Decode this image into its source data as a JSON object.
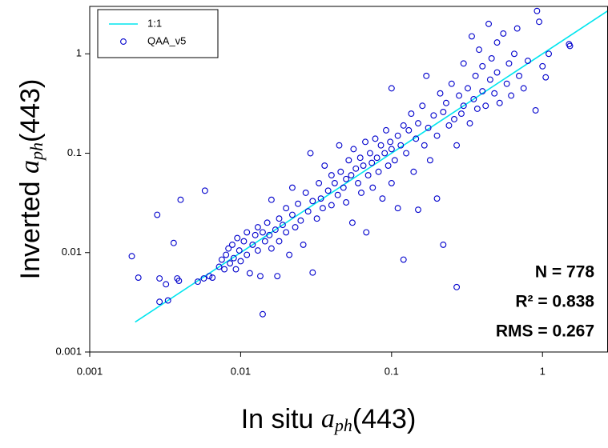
{
  "chart_data": {
    "type": "scatter",
    "x_label": {
      "prefix": "In situ ",
      "symbol": "a",
      "subscript": "ph",
      "suffix": "(443)"
    },
    "y_label": {
      "prefix": "Inverted ",
      "symbol": "a",
      "subscript": "ph",
      "suffix": "(443)"
    },
    "xscale": "log",
    "yscale": "log",
    "xlim": [
      0.001,
      2.7
    ],
    "ylim": [
      0.001,
      3
    ],
    "xticks": [
      0.001,
      0.01,
      0.1,
      1
    ],
    "yticks": [
      0.001,
      0.01,
      0.1,
      1
    ],
    "legend": "upper left",
    "annotations": [
      "N = 778",
      "R² = 0.838",
      "RMS = 0.267"
    ],
    "series": [
      {
        "name": "1:1",
        "kind": "line",
        "color": "#00e5ee",
        "x": [
          0.002,
          2.7
        ],
        "values": [
          0.002,
          2.7
        ]
      },
      {
        "name": "QAA_v5",
        "kind": "scatter",
        "color": "#0000cc",
        "x": [
          0.0019,
          0.0021,
          0.0028,
          0.0029,
          0.0029,
          0.0032,
          0.0033,
          0.0036,
          0.0038,
          0.0039,
          0.004,
          0.0052,
          0.0057,
          0.0058,
          0.0062,
          0.0065,
          0.0072,
          0.0075,
          0.0078,
          0.008,
          0.0083,
          0.0085,
          0.0088,
          0.009,
          0.0093,
          0.0095,
          0.0098,
          0.01,
          0.0105,
          0.011,
          0.011,
          0.0115,
          0.012,
          0.0125,
          0.013,
          0.013,
          0.0135,
          0.014,
          0.014,
          0.0145,
          0.015,
          0.0155,
          0.016,
          0.016,
          0.017,
          0.0175,
          0.018,
          0.018,
          0.019,
          0.02,
          0.02,
          0.021,
          0.022,
          0.022,
          0.023,
          0.024,
          0.025,
          0.026,
          0.027,
          0.028,
          0.029,
          0.03,
          0.03,
          0.032,
          0.033,
          0.034,
          0.035,
          0.036,
          0.038,
          0.04,
          0.04,
          0.042,
          0.044,
          0.045,
          0.046,
          0.048,
          0.05,
          0.05,
          0.052,
          0.054,
          0.055,
          0.056,
          0.058,
          0.06,
          0.062,
          0.063,
          0.065,
          0.067,
          0.068,
          0.07,
          0.072,
          0.074,
          0.075,
          0.078,
          0.08,
          0.082,
          0.085,
          0.087,
          0.09,
          0.092,
          0.095,
          0.098,
          0.1,
          0.1,
          0.1,
          0.105,
          0.11,
          0.11,
          0.115,
          0.12,
          0.12,
          0.125,
          0.13,
          0.135,
          0.14,
          0.145,
          0.15,
          0.15,
          0.16,
          0.165,
          0.17,
          0.175,
          0.18,
          0.19,
          0.2,
          0.2,
          0.21,
          0.22,
          0.22,
          0.23,
          0.24,
          0.25,
          0.26,
          0.27,
          0.27,
          0.28,
          0.29,
          0.3,
          0.3,
          0.32,
          0.33,
          0.34,
          0.35,
          0.36,
          0.37,
          0.38,
          0.4,
          0.4,
          0.42,
          0.44,
          0.45,
          0.46,
          0.48,
          0.5,
          0.5,
          0.52,
          0.55,
          0.58,
          0.6,
          0.62,
          0.65,
          0.68,
          0.7,
          0.75,
          0.8,
          0.9,
          0.92,
          0.95,
          1.0,
          1.05,
          1.1,
          1.5,
          1.52
        ],
        "values": [
          0.0092,
          0.0056,
          0.024,
          0.0055,
          0.0032,
          0.0048,
          0.0033,
          0.0125,
          0.0055,
          0.0052,
          0.034,
          0.0051,
          0.0055,
          0.042,
          0.0058,
          0.0056,
          0.0072,
          0.0085,
          0.0068,
          0.0095,
          0.011,
          0.0078,
          0.012,
          0.0088,
          0.0068,
          0.014,
          0.0105,
          0.0082,
          0.013,
          0.0095,
          0.016,
          0.0062,
          0.012,
          0.015,
          0.0105,
          0.018,
          0.0058,
          0.016,
          0.0024,
          0.013,
          0.02,
          0.015,
          0.011,
          0.034,
          0.017,
          0.0058,
          0.022,
          0.013,
          0.019,
          0.016,
          0.028,
          0.0095,
          0.024,
          0.045,
          0.018,
          0.031,
          0.021,
          0.012,
          0.04,
          0.026,
          0.1,
          0.033,
          0.0063,
          0.022,
          0.05,
          0.035,
          0.028,
          0.075,
          0.042,
          0.03,
          0.06,
          0.05,
          0.038,
          0.12,
          0.065,
          0.045,
          0.055,
          0.032,
          0.085,
          0.06,
          0.02,
          0.11,
          0.07,
          0.05,
          0.09,
          0.04,
          0.075,
          0.13,
          0.016,
          0.06,
          0.1,
          0.08,
          0.045,
          0.14,
          0.09,
          0.065,
          0.12,
          0.035,
          0.1,
          0.17,
          0.075,
          0.13,
          0.11,
          0.45,
          0.05,
          0.085,
          0.15,
          0.028,
          0.12,
          0.19,
          0.0085,
          0.1,
          0.17,
          0.25,
          0.065,
          0.14,
          0.027,
          0.2,
          0.3,
          0.12,
          0.6,
          0.18,
          0.085,
          0.24,
          0.15,
          0.035,
          0.4,
          0.012,
          0.26,
          0.32,
          0.19,
          0.5,
          0.22,
          0.0045,
          0.12,
          0.38,
          0.25,
          0.8,
          0.3,
          0.45,
          0.2,
          1.5,
          0.35,
          0.6,
          0.28,
          1.1,
          0.42,
          0.75,
          0.3,
          2.0,
          0.55,
          0.9,
          0.4,
          1.3,
          0.65,
          0.32,
          1.6,
          0.5,
          0.8,
          0.38,
          1.0,
          1.8,
          0.6,
          0.45,
          0.85,
          0.27,
          2.7,
          2.1,
          0.75,
          0.58,
          1.0,
          1.25,
          1.2
        ]
      }
    ]
  }
}
